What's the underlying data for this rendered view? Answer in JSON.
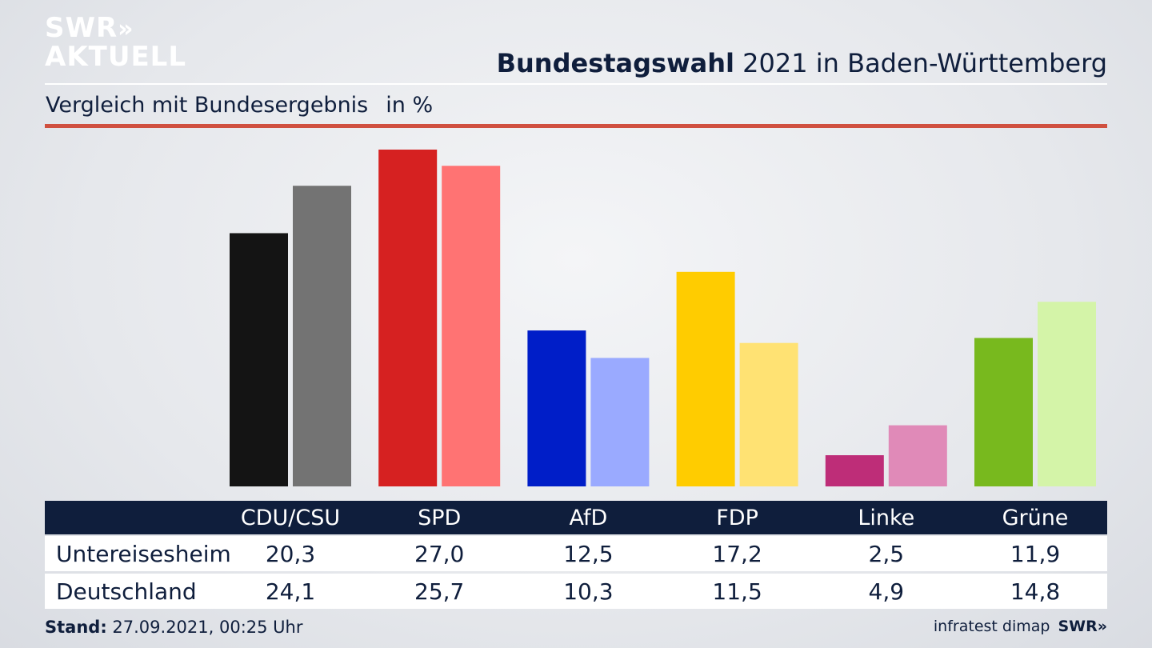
{
  "logo": {
    "line1": "SWR",
    "chevrons": "»",
    "line2": "AKTUELL"
  },
  "header": {
    "title_bold": "Bundestagswahl",
    "title_rest": " 2021 in Baden-Württemberg"
  },
  "subtitle": {
    "text": "Vergleich mit Bundesergebnis",
    "unit": "in %"
  },
  "chart_data": {
    "type": "bar",
    "categories": [
      "CDU/CSU",
      "SPD",
      "AfD",
      "FDP",
      "Linke",
      "Grüne"
    ],
    "series": [
      {
        "name": "Untereisesheim",
        "values": [
          20.3,
          27.0,
          12.5,
          17.2,
          2.5,
          11.9
        ],
        "colors": [
          "#141414",
          "#d62121",
          "#001ec8",
          "#ffcc00",
          "#be2d78",
          "#78b91e"
        ]
      },
      {
        "name": "Deutschland",
        "values": [
          24.1,
          25.7,
          10.3,
          11.5,
          4.9,
          14.8
        ],
        "colors": [
          "#737373",
          "#ff7373",
          "#9aaaff",
          "#ffe273",
          "#e08ab8",
          "#d4f4a8"
        ]
      }
    ],
    "ylim": [
      0,
      27.0
    ],
    "grid": false,
    "legend": "table-below"
  },
  "table": {
    "rows": [
      {
        "label": "Untereisesheim",
        "values": [
          "20,3",
          "27,0",
          "12,5",
          "17,2",
          "2,5",
          "11,9"
        ]
      },
      {
        "label": "Deutschland",
        "values": [
          "24,1",
          "25,7",
          "10,3",
          "11,5",
          "4,9",
          "14,8"
        ]
      }
    ]
  },
  "footer": {
    "stand_label": "Stand:",
    "stand_value": " 27.09.2021, 00:25 Uhr",
    "source": "infratest dimap",
    "brand": "SWR»"
  }
}
